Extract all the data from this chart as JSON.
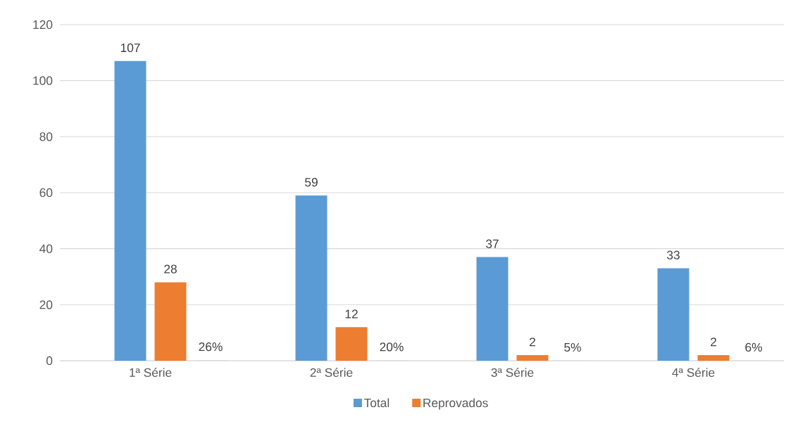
{
  "chart_data": {
    "type": "bar",
    "categories": [
      "1ª Série",
      "2ª Série",
      "3ª Série",
      "4ª Série"
    ],
    "series": [
      {
        "name": "Total",
        "color": "#5b9bd5",
        "values": [
          107,
          59,
          37,
          33
        ],
        "value_labels": [
          "107",
          "59",
          "37",
          "33"
        ]
      },
      {
        "name": "Reprovados",
        "color": "#ed7d31",
        "values": [
          28,
          12,
          2,
          2
        ],
        "value_labels": [
          "28",
          "12",
          "2",
          "2"
        ]
      },
      {
        "color": "#d9d9d9",
        "values": [
          0.26,
          0.2,
          0.05,
          0.06
        ],
        "value_labels": [
          "26%",
          "20%",
          "5%",
          "6%"
        ]
      }
    ],
    "ylim": [
      0,
      120
    ],
    "yticks": [
      0,
      20,
      40,
      60,
      80,
      100,
      120
    ],
    "grid": "y",
    "legend": "bottom"
  }
}
